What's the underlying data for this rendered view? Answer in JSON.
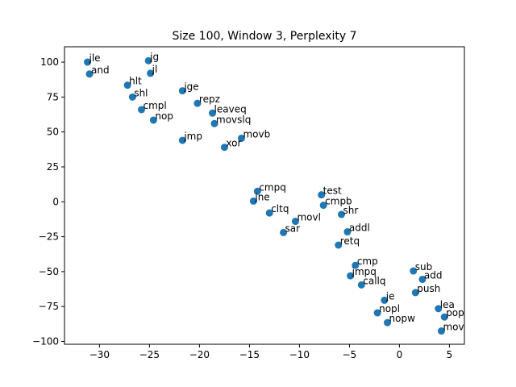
{
  "chart_data": {
    "type": "scatter",
    "title": "Size 100, Window 3, Perplexity 7",
    "xlabel": "",
    "ylabel": "",
    "xlim": [
      -33.5,
      6.5
    ],
    "ylim": [
      -102,
      111
    ],
    "xticks": [
      -30,
      -25,
      -20,
      -15,
      -10,
      -5,
      0,
      5
    ],
    "yticks": [
      -100,
      -75,
      -50,
      -25,
      0,
      25,
      50,
      75,
      100
    ],
    "xtick_labels": [
      "−30",
      "−25",
      "−20",
      "−15",
      "−10",
      "−5",
      "0",
      "5"
    ],
    "ytick_labels": [
      "−100",
      "−75",
      "−50",
      "−25",
      "0",
      "25",
      "50",
      "75",
      "100"
    ],
    "grid": false,
    "marker_color": "#1f77b4",
    "points": [
      {
        "label": "jle",
        "x": -31.2,
        "y": 100
      },
      {
        "label": "and",
        "x": -31.0,
        "y": 91.5
      },
      {
        "label": "jg",
        "x": -25.1,
        "y": 101
      },
      {
        "label": "jl",
        "x": -24.9,
        "y": 92
      },
      {
        "label": "hlt",
        "x": -27.2,
        "y": 83.5
      },
      {
        "label": "shl",
        "x": -26.7,
        "y": 75
      },
      {
        "label": "cmpl",
        "x": -25.8,
        "y": 66
      },
      {
        "label": "nop",
        "x": -24.6,
        "y": 58.5
      },
      {
        "label": "jge",
        "x": -21.7,
        "y": 79.5
      },
      {
        "label": "repz",
        "x": -20.2,
        "y": 70.5
      },
      {
        "label": "leaveq",
        "x": -18.7,
        "y": 63.5
      },
      {
        "label": "movslq",
        "x": -18.5,
        "y": 56
      },
      {
        "label": "jmp",
        "x": -21.7,
        "y": 44
      },
      {
        "label": "movb",
        "x": -15.8,
        "y": 45.5
      },
      {
        "label": "xor",
        "x": -17.5,
        "y": 39
      },
      {
        "label": "cmpq",
        "x": -14.2,
        "y": 7.5
      },
      {
        "label": "jne",
        "x": -14.6,
        "y": 0.5
      },
      {
        "label": "cltq",
        "x": -13.0,
        "y": -8
      },
      {
        "label": "movl",
        "x": -10.4,
        "y": -14
      },
      {
        "label": "sar",
        "x": -11.6,
        "y": -22
      },
      {
        "label": "test",
        "x": -7.8,
        "y": 5
      },
      {
        "label": "cmpb",
        "x": -7.6,
        "y": -2.5
      },
      {
        "label": "shr",
        "x": -5.8,
        "y": -9
      },
      {
        "label": "addl",
        "x": -5.2,
        "y": -21.5
      },
      {
        "label": "retq",
        "x": -6.1,
        "y": -31
      },
      {
        "label": "cmp",
        "x": -4.4,
        "y": -45.5
      },
      {
        "label": "jmpq",
        "x": -4.9,
        "y": -53
      },
      {
        "label": "callq",
        "x": -3.8,
        "y": -59.5
      },
      {
        "label": "je",
        "x": -1.5,
        "y": -70.5
      },
      {
        "label": "nopl",
        "x": -2.2,
        "y": -79.5
      },
      {
        "label": "nopw",
        "x": -1.2,
        "y": -86.5
      },
      {
        "label": "sub",
        "x": 1.4,
        "y": -49.5
      },
      {
        "label": "add",
        "x": 2.3,
        "y": -55.5
      },
      {
        "label": "push",
        "x": 1.6,
        "y": -65
      },
      {
        "label": "lea",
        "x": 3.9,
        "y": -76.5
      },
      {
        "label": "pop",
        "x": 4.5,
        "y": -82.5
      },
      {
        "label": "mov",
        "x": 4.2,
        "y": -92.5
      }
    ]
  }
}
